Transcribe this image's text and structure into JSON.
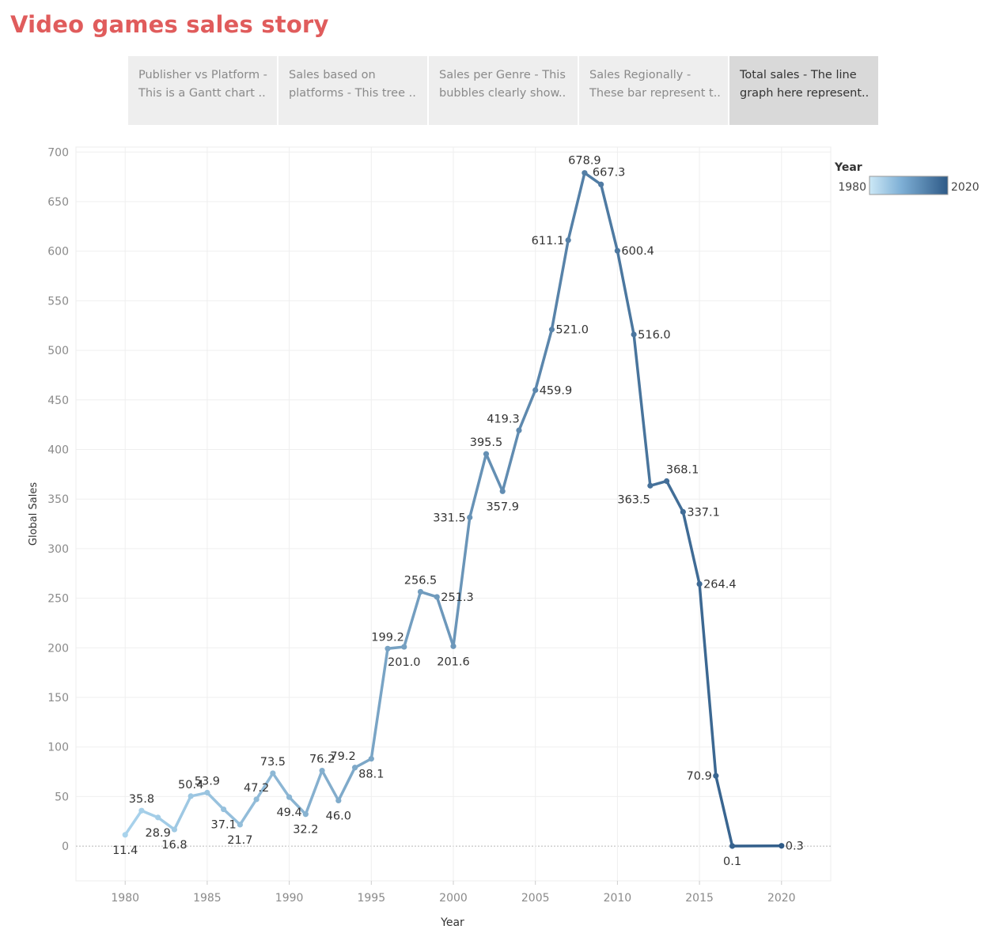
{
  "title": "Video games sales story",
  "story_points": [
    {
      "label": "Publisher vs Platform -\nThis is a Gantt chart ..",
      "active": false
    },
    {
      "label": "Sales based on\nplatforms - This tree ..",
      "active": false
    },
    {
      "label": "Sales per Genre - This\nbubbles clearly show..",
      "active": false
    },
    {
      "label": "Sales Regionally -\nThese bar represent t..",
      "active": false
    },
    {
      "label": "Total sales - The line\ngraph here represent..",
      "active": true
    }
  ],
  "colors": {
    "title": "#e05c5c",
    "color_low": "#a9d3ec",
    "color_high": "#2e5a87"
  },
  "chart_data": {
    "type": "line",
    "xlabel": "Year",
    "ylabel": "Global Sales",
    "xlim": [
      1977,
      2023
    ],
    "ylim": [
      -35,
      705
    ],
    "x_ticks": [
      1980,
      1985,
      1990,
      1995,
      2000,
      2005,
      2010,
      2015,
      2020
    ],
    "y_ticks": [
      0,
      50,
      100,
      150,
      200,
      250,
      300,
      350,
      400,
      450,
      500,
      550,
      600,
      650,
      700
    ],
    "grid": true,
    "legend": {
      "title": "Year",
      "min_label": "1980",
      "max_label": "2020",
      "placement": "top-right"
    },
    "x": [
      1980,
      1981,
      1982,
      1983,
      1984,
      1985,
      1986,
      1987,
      1988,
      1989,
      1990,
      1991,
      1992,
      1993,
      1994,
      1995,
      1996,
      1997,
      1998,
      1999,
      2000,
      2001,
      2002,
      2003,
      2004,
      2005,
      2006,
      2007,
      2008,
      2009,
      2010,
      2011,
      2012,
      2013,
      2014,
      2015,
      2016,
      2017,
      2020
    ],
    "values": [
      11.4,
      35.8,
      28.9,
      16.8,
      50.4,
      53.9,
      37.1,
      21.7,
      47.2,
      73.5,
      49.4,
      32.2,
      76.2,
      46.0,
      79.2,
      88.1,
      199.2,
      201.0,
      256.5,
      251.3,
      201.6,
      331.5,
      395.5,
      357.9,
      419.3,
      459.9,
      521.0,
      611.1,
      678.9,
      667.3,
      600.4,
      516.0,
      363.5,
      368.1,
      337.1,
      264.4,
      70.9,
      0.1,
      0.3
    ],
    "labels": [
      "11.4",
      "35.8",
      "28.9",
      "16.8",
      "50.4",
      "53.9",
      "37.1",
      "21.7",
      "47.2",
      "73.5",
      "49.4",
      "32.2",
      "76.2",
      "46.0",
      "79.2",
      "88.1",
      "199.2",
      "201.0",
      "256.5",
      "251.3",
      "201.6",
      "331.5",
      "395.5",
      "357.9",
      "419.3",
      "459.9",
      "521.0",
      "611.1",
      "678.9",
      "667.3",
      "600.4",
      "516.0",
      "363.5",
      "368.1",
      "337.1",
      "264.4",
      "70.9",
      "0.1",
      "0.3"
    ]
  }
}
